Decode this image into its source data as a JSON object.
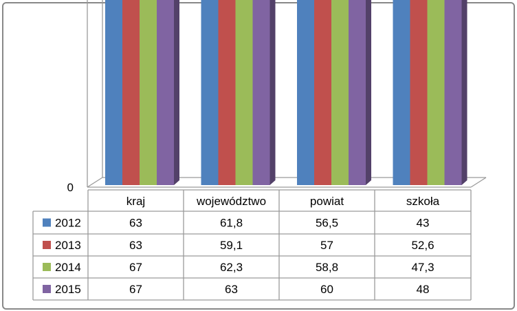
{
  "chart_data": {
    "type": "bar",
    "title": "",
    "xlabel": "",
    "ylabel": "",
    "categories": [
      "kraj",
      "województwo",
      "powiat",
      "szkoła"
    ],
    "series": [
      {
        "name": "2012",
        "values": [
          63,
          61.8,
          56.5,
          43
        ],
        "labels": [
          "63",
          "61,8",
          "56,5",
          "43"
        ],
        "color": "#4F81BD"
      },
      {
        "name": "2013",
        "values": [
          63,
          59.1,
          57,
          52.6
        ],
        "labels": [
          "63",
          "59,1",
          "57",
          "52,6"
        ],
        "color": "#C0504D"
      },
      {
        "name": "2014",
        "values": [
          67,
          62.3,
          58.8,
          47.3
        ],
        "labels": [
          "67",
          "62,3",
          "58,8",
          "47,3"
        ],
        "color": "#9BBB59"
      },
      {
        "name": "2015",
        "values": [
          67,
          63,
          60,
          48
        ],
        "labels": [
          "67",
          "63",
          "60",
          "48"
        ],
        "color": "#8064A2"
      }
    ],
    "ylim": [
      0,
      70
    ],
    "yticks": [
      0,
      10,
      20,
      30,
      40,
      50,
      60,
      70
    ],
    "grid": true,
    "legend": "data table below chart",
    "style": "3d-clustered-column"
  }
}
